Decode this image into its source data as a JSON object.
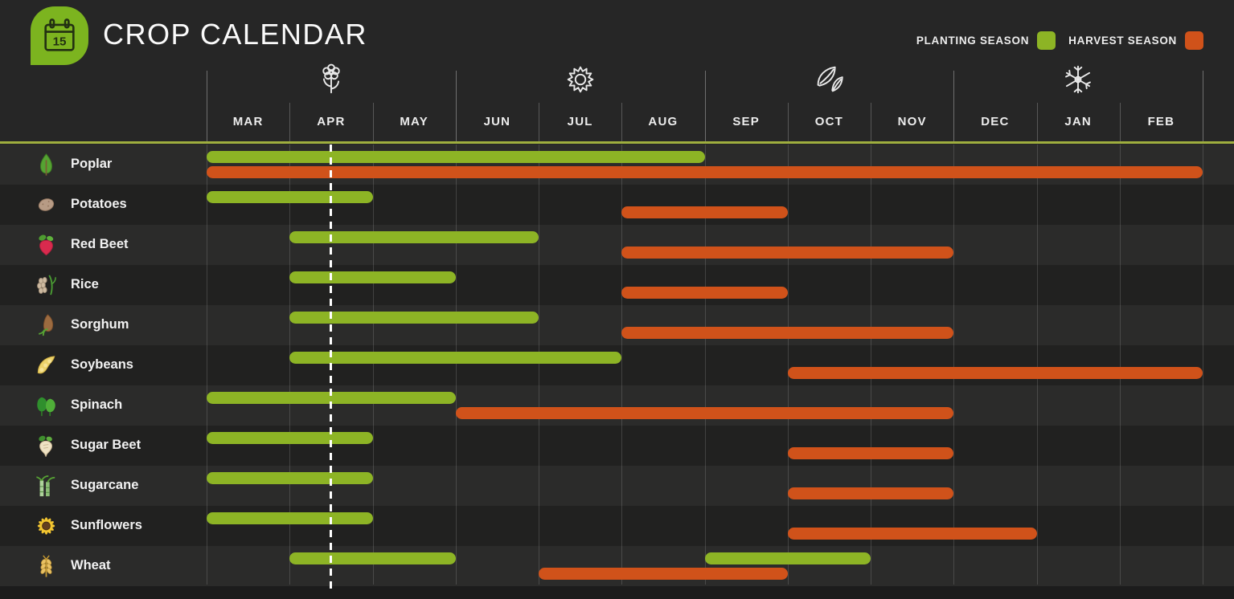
{
  "header": {
    "title": "CROP CALENDAR",
    "logo": {
      "icon": "calendar-icon",
      "day": "15"
    }
  },
  "calendar": {
    "seasons": [
      {
        "name": "spring",
        "icon": "flower-icon",
        "months": [
          "MAR",
          "APR",
          "MAY"
        ]
      },
      {
        "name": "summer",
        "icon": "sun-icon",
        "months": [
          "JUN",
          "JUL",
          "AUG"
        ]
      },
      {
        "name": "autumn",
        "icon": "autumn-leaves-icon",
        "months": [
          "SEP",
          "OCT",
          "NOV"
        ]
      },
      {
        "name": "winter",
        "icon": "snowflake-icon",
        "months": [
          "DEC",
          "JAN",
          "FEB"
        ]
      }
    ]
  },
  "chart_data": {
    "type": "gantt",
    "title": "CROP CALENDAR",
    "x_categories": [
      "MAR",
      "APR",
      "MAY",
      "JUN",
      "JUL",
      "AUG",
      "SEP",
      "OCT",
      "NOV",
      "DEC",
      "JAN",
      "FEB"
    ],
    "legend": [
      {
        "name": "PLANTING SEASON",
        "key": "plant",
        "color": "#8DB425"
      },
      {
        "name": "HARVEST SEASON",
        "key": "harvest",
        "color": "#D0521A"
      }
    ],
    "marker": {
      "description": "dashed day marker at mid-April",
      "month": "APR",
      "x_month_index": 1.5
    },
    "colors": {
      "planting": "#8DB425",
      "harvest": "#D0521A",
      "accent_line": "#9fae3e"
    },
    "rows": [
      {
        "crop": "Poplar",
        "icon": "poplar-icon",
        "planting": [
          {
            "from": "MAR",
            "to": "AUG",
            "start_index": 0,
            "months": 6
          }
        ],
        "harvest": [
          {
            "from": "MAR",
            "to": "FEB",
            "start_index": 0,
            "months": 12
          }
        ]
      },
      {
        "crop": "Potatoes",
        "icon": "potatoes-icon",
        "planting": [
          {
            "from": "MAR",
            "to": "APR",
            "start_index": 0,
            "months": 2
          }
        ],
        "harvest": [
          {
            "from": "AUG",
            "to": "SEP",
            "start_index": 5,
            "months": 2
          }
        ]
      },
      {
        "crop": "Red Beet",
        "icon": "red-beet-icon",
        "planting": [
          {
            "from": "APR",
            "to": "JUN",
            "start_index": 1,
            "months": 3
          }
        ],
        "harvest": [
          {
            "from": "AUG",
            "to": "NOV",
            "start_index": 5,
            "months": 4
          }
        ]
      },
      {
        "crop": "Rice",
        "icon": "rice-icon",
        "planting": [
          {
            "from": "APR",
            "to": "MAY",
            "start_index": 1,
            "months": 2
          }
        ],
        "harvest": [
          {
            "from": "AUG",
            "to": "SEP",
            "start_index": 5,
            "months": 2
          }
        ]
      },
      {
        "crop": "Sorghum",
        "icon": "sorghum-icon",
        "planting": [
          {
            "from": "APR",
            "to": "JUN",
            "start_index": 1,
            "months": 3
          }
        ],
        "harvest": [
          {
            "from": "AUG",
            "to": "NOV",
            "start_index": 5,
            "months": 4
          }
        ]
      },
      {
        "crop": "Soybeans",
        "icon": "soybeans-icon",
        "planting": [
          {
            "from": "APR",
            "to": "JUL",
            "start_index": 1,
            "months": 4
          }
        ],
        "harvest": [
          {
            "from": "OCT",
            "to": "FEB",
            "start_index": 7,
            "months": 5
          }
        ]
      },
      {
        "crop": "Spinach",
        "icon": "spinach-icon",
        "planting": [
          {
            "from": "MAR",
            "to": "MAY",
            "start_index": 0,
            "months": 3
          }
        ],
        "harvest": [
          {
            "from": "JUN",
            "to": "NOV",
            "start_index": 3,
            "months": 6
          }
        ]
      },
      {
        "crop": "Sugar Beet",
        "icon": "sugar-beet-icon",
        "planting": [
          {
            "from": "MAR",
            "to": "APR",
            "start_index": 0,
            "months": 2
          }
        ],
        "harvest": [
          {
            "from": "OCT",
            "to": "NOV",
            "start_index": 7,
            "months": 2
          }
        ]
      },
      {
        "crop": "Sugarcane",
        "icon": "sugarcane-icon",
        "planting": [
          {
            "from": "MAR",
            "to": "APR",
            "start_index": 0,
            "months": 2
          }
        ],
        "harvest": [
          {
            "from": "OCT",
            "to": "NOV",
            "start_index": 7,
            "months": 2
          }
        ]
      },
      {
        "crop": "Sunflowers",
        "icon": "sunflowers-icon",
        "planting": [
          {
            "from": "MAR",
            "to": "APR",
            "start_index": 0,
            "months": 2
          }
        ],
        "harvest": [
          {
            "from": "OCT",
            "to": "DEC",
            "start_index": 7,
            "months": 3
          }
        ]
      },
      {
        "crop": "Wheat",
        "icon": "wheat-icon",
        "planting": [
          {
            "from": "APR",
            "to": "MAY",
            "start_index": 1,
            "months": 2
          },
          {
            "from": "SEP",
            "to": "OCT",
            "start_index": 6,
            "months": 2
          }
        ],
        "harvest": [
          {
            "from": "JUL",
            "to": "SEP",
            "start_index": 4,
            "months": 3
          }
        ]
      }
    ]
  }
}
